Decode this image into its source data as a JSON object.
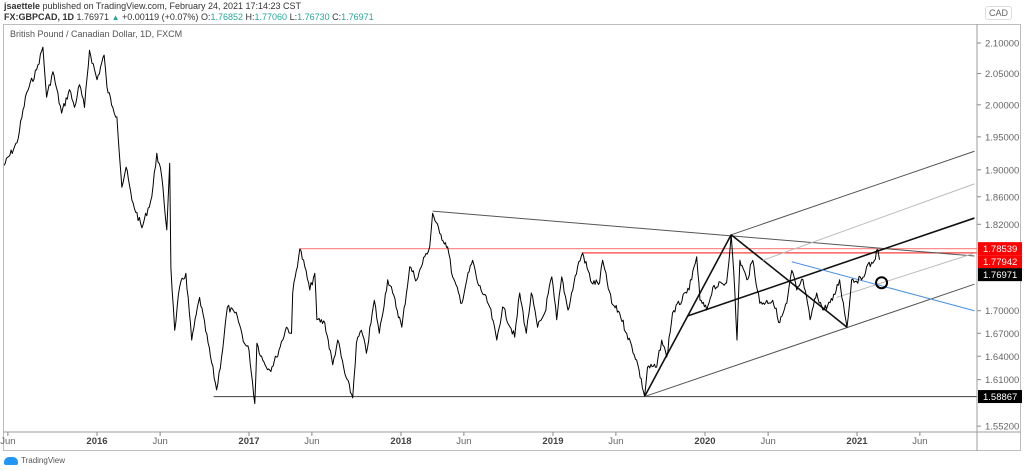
{
  "header": {
    "publisher": "jsaettele",
    "published_text": "published on TradingView.com, February 24, 2021 17:14:23 CST",
    "symbol": "FX:GBPCAD, 1D",
    "last": "1.76971",
    "change_arrow": "▲",
    "change": "+0.00119 (+0.07%)",
    "open_label": "O:",
    "open": "1.76852",
    "high_label": "H:",
    "high": "1.77060",
    "low_label": "L:",
    "low": "1.76730",
    "close_label": "C:",
    "close": "1.76971"
  },
  "legend": "British Pound / Canadian Dollar, 1D, FXCM",
  "currency": "CAD",
  "footer": {
    "logo_text": "TradingView"
  },
  "colors": {
    "price": "#000000",
    "red_level": "#ff0000",
    "blue_line": "#4a90e2",
    "tag_black": "#000000",
    "tag_red": "#ff0000",
    "value_teal": "#26a69a"
  },
  "chart_data": {
    "type": "line",
    "symbol": "GBPCAD",
    "y_scale": "log",
    "ylim": [
      1.552,
      2.1
    ],
    "y_ticks": [
      "2.10000",
      "2.05000",
      "2.00000",
      "1.95000",
      "1.90000",
      "1.86000",
      "1.82000",
      "1.70000",
      "1.67000",
      "1.64000",
      "1.61000",
      "1.55200"
    ],
    "x_ticks": [
      {
        "label": "Jun",
        "date": "2015-06-01",
        "year": false
      },
      {
        "label": "2016",
        "date": "2016-01-01",
        "year": true
      },
      {
        "label": "Jun",
        "date": "2016-06-01",
        "year": false
      },
      {
        "label": "2017",
        "date": "2017-01-01",
        "year": true
      },
      {
        "label": "Jun",
        "date": "2017-06-01",
        "year": false
      },
      {
        "label": "2018",
        "date": "2018-01-01",
        "year": true
      },
      {
        "label": "Jun",
        "date": "2018-06-01",
        "year": false
      },
      {
        "label": "2019",
        "date": "2019-01-01",
        "year": true
      },
      {
        "label": "Jun",
        "date": "2019-06-01",
        "year": false
      },
      {
        "label": "2020",
        "date": "2020-01-01",
        "year": true
      },
      {
        "label": "Jun",
        "date": "2020-06-01",
        "year": false
      },
      {
        "label": "2021",
        "date": "2021-01-01",
        "year": true
      },
      {
        "label": "Jun",
        "date": "2021-06-01",
        "year": false
      }
    ],
    "price_tags": [
      {
        "label": "1.78539",
        "value": 1.78539,
        "color": "#ff0000"
      },
      {
        "label": "1.77942",
        "value": 1.77942,
        "color": "#ff0000"
      },
      {
        "label": "1.76971",
        "value": 1.76971,
        "color": "#000000"
      },
      {
        "label": "1.58867",
        "value": 1.58867,
        "color": "#000000"
      }
    ],
    "series": [
      [
        [
          "2015-05-20",
          1.904
        ],
        [
          "2015-06-23",
          1.941
        ],
        [
          "2015-07-16",
          2.019
        ],
        [
          "2015-08-09",
          2.056
        ],
        [
          "2015-08-24",
          2.093
        ],
        [
          "2015-09-02",
          2.012
        ],
        [
          "2015-09-17",
          2.053
        ],
        [
          "2015-10-08",
          1.987
        ],
        [
          "2015-10-27",
          2.024
        ],
        [
          "2015-11-08",
          1.996
        ],
        [
          "2015-11-20",
          2.032
        ],
        [
          "2015-12-02",
          1.996
        ],
        [
          "2015-12-14",
          2.088
        ],
        [
          "2016-01-01",
          2.04
        ],
        [
          "2016-01-18",
          2.08
        ],
        [
          "2016-01-25",
          2.028
        ],
        [
          "2016-02-08",
          1.996
        ],
        [
          "2016-02-18",
          1.981
        ],
        [
          "2016-03-01",
          1.874
        ],
        [
          "2016-03-11",
          1.904
        ],
        [
          "2016-03-25",
          1.855
        ],
        [
          "2016-04-18",
          1.815
        ],
        [
          "2016-05-12",
          1.86
        ],
        [
          "2016-05-24",
          1.925
        ],
        [
          "2016-06-05",
          1.889
        ],
        [
          "2016-06-17",
          1.812
        ],
        [
          "2016-06-24",
          1.91
        ],
        [
          "2016-06-27",
          1.758
        ],
        [
          "2016-07-06",
          1.674
        ],
        [
          "2016-07-18",
          1.732
        ],
        [
          "2016-08-02",
          1.751
        ],
        [
          "2016-08-16",
          1.661
        ],
        [
          "2016-09-04",
          1.718
        ],
        [
          "2016-10-15",
          1.597
        ],
        [
          "2016-10-27",
          1.639
        ],
        [
          "2016-11-10",
          1.705
        ],
        [
          "2016-12-04",
          1.692
        ],
        [
          "2016-12-21",
          1.657
        ],
        [
          "2017-01-01",
          1.648
        ],
        [
          "2017-01-15",
          1.58
        ],
        [
          "2017-01-20",
          1.657
        ],
        [
          "2017-02-03",
          1.635
        ],
        [
          "2017-02-20",
          1.622
        ],
        [
          "2017-03-08",
          1.639
        ],
        [
          "2017-04-01",
          1.678
        ],
        [
          "2017-04-13",
          1.67
        ],
        [
          "2017-04-16",
          1.724
        ],
        [
          "2017-05-03",
          1.785
        ],
        [
          "2017-05-15",
          1.76
        ],
        [
          "2017-05-27",
          1.728
        ],
        [
          "2017-06-08",
          1.751
        ],
        [
          "2017-06-13",
          1.688
        ],
        [
          "2017-07-02",
          1.684
        ],
        [
          "2017-07-21",
          1.629
        ],
        [
          "2017-08-02",
          1.661
        ],
        [
          "2017-08-19",
          1.618
        ],
        [
          "2017-09-07",
          1.587
        ],
        [
          "2017-09-16",
          1.657
        ],
        [
          "2017-09-28",
          1.674
        ],
        [
          "2017-10-10",
          1.644
        ],
        [
          "2017-10-29",
          1.714
        ],
        [
          "2017-11-10",
          1.67
        ],
        [
          "2017-11-30",
          1.742
        ],
        [
          "2017-12-12",
          1.724
        ],
        [
          "2018-01-03",
          1.678
        ],
        [
          "2018-01-22",
          1.76
        ],
        [
          "2018-02-08",
          1.742
        ],
        [
          "2018-02-27",
          1.774
        ],
        [
          "2018-03-11",
          1.788
        ],
        [
          "2018-03-18",
          1.836
        ],
        [
          "2018-04-04",
          1.807
        ],
        [
          "2018-04-23",
          1.788
        ],
        [
          "2018-05-05",
          1.746
        ],
        [
          "2018-05-27",
          1.71
        ],
        [
          "2018-06-08",
          1.742
        ],
        [
          "2018-06-22",
          1.769
        ],
        [
          "2018-07-04",
          1.738
        ],
        [
          "2018-08-02",
          1.705
        ],
        [
          "2018-08-19",
          1.661
        ],
        [
          "2018-09-02",
          1.705
        ],
        [
          "2018-10-01",
          1.665
        ],
        [
          "2018-10-13",
          1.724
        ],
        [
          "2018-10-29",
          1.67
        ],
        [
          "2018-11-10",
          1.724
        ],
        [
          "2018-11-25",
          1.678
        ],
        [
          "2018-12-12",
          1.697
        ],
        [
          "2018-12-29",
          1.746
        ],
        [
          "2019-01-10",
          1.688
        ],
        [
          "2019-01-22",
          1.746
        ],
        [
          "2019-02-06",
          1.701
        ],
        [
          "2019-03-01",
          1.76
        ],
        [
          "2019-03-13",
          1.779
        ],
        [
          "2019-04-04",
          1.738
        ],
        [
          "2019-04-23",
          1.738
        ],
        [
          "2019-04-30",
          1.769
        ],
        [
          "2019-05-22",
          1.71
        ],
        [
          "2019-06-10",
          1.697
        ],
        [
          "2019-06-27",
          1.67
        ],
        [
          "2019-07-21",
          1.635
        ],
        [
          "2019-08-09",
          1.589
        ],
        [
          "2019-08-16",
          1.626
        ],
        [
          "2019-09-07",
          1.626
        ],
        [
          "2019-09-19",
          1.661
        ],
        [
          "2019-10-01",
          1.639
        ],
        [
          "2019-10-15",
          1.697
        ],
        [
          "2019-11-18",
          1.724
        ],
        [
          "2019-11-30",
          1.742
        ],
        [
          "2019-12-12",
          1.774
        ],
        [
          "2019-12-20",
          1.714
        ],
        [
          "2020-01-05",
          1.701
        ],
        [
          "2020-01-20",
          1.732
        ],
        [
          "2020-02-22",
          1.738
        ],
        [
          "2020-03-04",
          1.805
        ],
        [
          "2020-03-13",
          1.724
        ],
        [
          "2020-03-18",
          1.661
        ],
        [
          "2020-03-25",
          1.769
        ],
        [
          "2020-04-11",
          1.742
        ],
        [
          "2020-04-25",
          1.769
        ],
        [
          "2020-05-12",
          1.71
        ],
        [
          "2020-06-12",
          1.714
        ],
        [
          "2020-06-29",
          1.684
        ],
        [
          "2020-07-16",
          1.71
        ],
        [
          "2020-07-28",
          1.755
        ],
        [
          "2020-08-09",
          1.728
        ],
        [
          "2020-08-24",
          1.742
        ],
        [
          "2020-09-10",
          1.688
        ],
        [
          "2020-09-26",
          1.724
        ],
        [
          "2020-10-11",
          1.701
        ],
        [
          "2020-11-03",
          1.714
        ],
        [
          "2020-11-20",
          1.742
        ],
        [
          "2020-12-08",
          1.678
        ],
        [
          "2020-12-19",
          1.742
        ],
        [
          "2021-01-12",
          1.742
        ],
        [
          "2021-01-24",
          1.76
        ],
        [
          "2021-02-08",
          1.765
        ],
        [
          "2021-02-20",
          1.784
        ],
        [
          "2021-02-24",
          1.76971
        ]
      ]
    ],
    "drawings": {
      "horizontal_levels": [
        {
          "name": "red-level-1",
          "from": "2017-05-03",
          "value": 1.78539,
          "color": "#ff0000",
          "opacity": 0.45
        },
        {
          "name": "red-level-2",
          "from": "2019-03-11",
          "value": 1.77942,
          "color": "#ff0000",
          "opacity": 0.75
        },
        {
          "name": "support-level",
          "from": "2016-10-08",
          "value": 1.58867,
          "color": "#555555",
          "opacity": 1
        }
      ],
      "trend_lines": [
        {
          "name": "descending-trendline",
          "p1": [
            "2018-03-18",
            1.839
          ],
          "p2": [
            "2021-10-10",
            1.775
          ],
          "color": "#555555",
          "width": 1
        },
        {
          "name": "pitchfork-leg-ab",
          "p1": [
            "2019-08-09",
            1.58867
          ],
          "p2": [
            "2020-03-04",
            1.805
          ],
          "color": "#111111",
          "width": 1.6
        },
        {
          "name": "pitchfork-leg-bc",
          "p1": [
            "2020-03-04",
            1.805
          ],
          "p2": [
            "2020-12-08",
            1.678
          ],
          "color": "#111111",
          "width": 1.6
        },
        {
          "name": "pitchfork-median",
          "p1": [
            "2019-11-20",
            1.693
          ],
          "p2": [
            "2021-10-10",
            1.829
          ],
          "color": "#111111",
          "width": 1.6
        },
        {
          "name": "pitchfork-upper",
          "p1": [
            "2020-03-04",
            1.805
          ],
          "p2": [
            "2021-10-10",
            1.928
          ],
          "color": "#555555",
          "width": 1
        },
        {
          "name": "pitchfork-lower",
          "p1": [
            "2019-08-09",
            1.58867
          ],
          "p2": [
            "2021-10-10",
            1.736
          ],
          "color": "#555555",
          "width": 1
        },
        {
          "name": "pitchfork-upper-quarter",
          "p1": [
            "2020-05-19",
            1.769
          ],
          "p2": [
            "2021-10-10",
            1.879
          ],
          "color": "#bbbbbb",
          "width": 1
        },
        {
          "name": "pitchfork-lower-quarter",
          "p1": [
            "2020-11-13",
            1.718
          ],
          "p2": [
            "2021-10-10",
            1.779
          ],
          "color": "#bbbbbb",
          "width": 1
        },
        {
          "name": "blue-trendline",
          "p1": [
            "2020-07-28",
            1.767
          ],
          "p2": [
            "2021-10-10",
            1.7
          ],
          "color": "#4a90e2",
          "width": 1
        }
      ],
      "circle": {
        "date": "2021-03-01",
        "value": 1.738
      }
    }
  }
}
